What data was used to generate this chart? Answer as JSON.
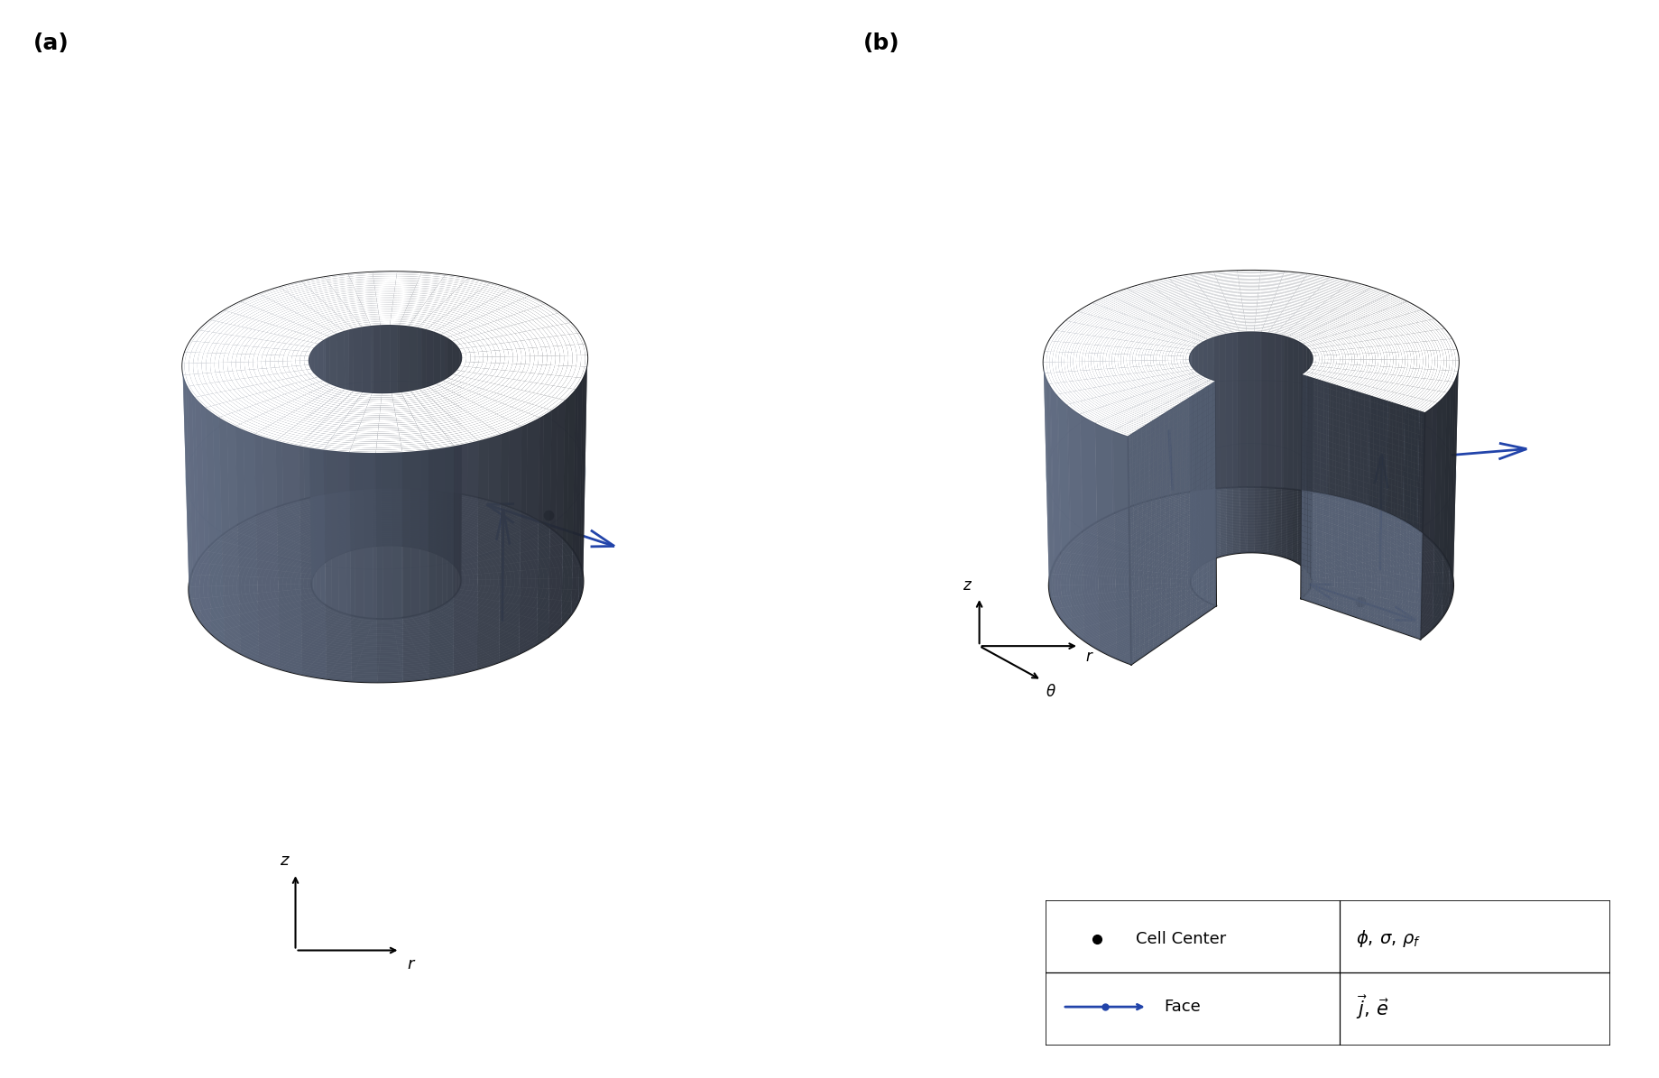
{
  "fig_width": 18.4,
  "fig_height": 11.95,
  "background_color": "#ffffff",
  "cylinder_color": "#5f6b82",
  "cylinder_alpha": 0.82,
  "cylinder_edge_color": "#1a1a1a",
  "arrow_color": "#2244aa",
  "dot_color": "#000000",
  "label_a": "(a)",
  "label_b": "(b)",
  "label_fontsize": 18,
  "legend_fontsize": 13,
  "white_face_color": "#ffffff",
  "ghost_line_color": "#aabbcc"
}
